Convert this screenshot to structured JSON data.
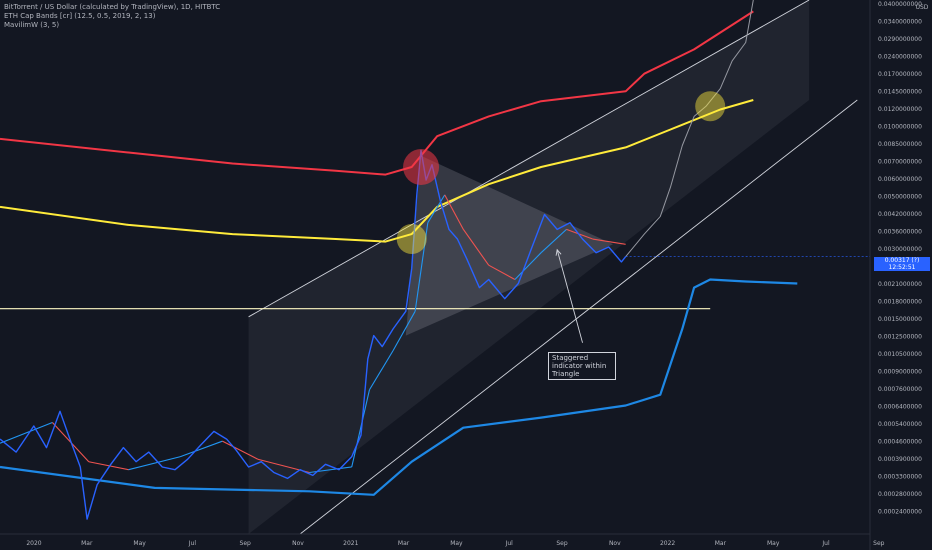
{
  "legend": {
    "symbol": "BitTorrent / US Dollar (calculated by TradingView), 1D, HITBTC",
    "indicator1": "ETH Cap Bands [cr] (12.5, 0.5, 2019, 2, 13)",
    "indicator2": "MavilimW (3, 5)"
  },
  "annotation": {
    "text": "Staggered indicator within Triangle"
  },
  "price_tag": {
    "price": "0.00317 (?)",
    "countdown": "12:52:51"
  },
  "currency": "USD",
  "colors": {
    "background": "#131722",
    "price_line": "#2962ff",
    "upper_band": "#f23645",
    "mid_band": "#ffeb3b",
    "lower_band": "#1e88e5",
    "mavilim_red": "#ef5350",
    "mavilim_blue": "#2196f3",
    "channel": "#d1d4dc",
    "support_line": "#fff9c4"
  },
  "chart_data": {
    "type": "line",
    "title": "BitTorrent / US Dollar (calculated by TradingView), 1D, HITBTC",
    "x_axis": {
      "range": [
        "2019-12-01",
        "2022-09-25"
      ],
      "tick_labels": [
        "2020",
        "Mar",
        "May",
        "Jul",
        "Sep",
        "Nov",
        "2021",
        "Mar",
        "May",
        "Jul",
        "Sep",
        "Nov",
        "2022",
        "Mar",
        "May",
        "Jul",
        "Sep"
      ]
    },
    "y_axis": {
      "scale": "log",
      "range": [
        0.00018,
        0.045
      ],
      "tick_labels": [
        "0.0400000000",
        "0.0340000000",
        "0.0290000000",
        "0.0240000000",
        "0.0170000000",
        "0.0145000000",
        "0.0120000000",
        "0.0100000000",
        "0.0085000000",
        "0.0070000000",
        "0.0060000000",
        "0.0050000000",
        "0.0042000000",
        "0.0036000000",
        "0.0030000000",
        "0.0025000000",
        "0.0021000000",
        "0.0018000000",
        "0.0015000000",
        "0.0012500000",
        "0.0010500000",
        "0.0009000000",
        "0.0007600000",
        "0.0006400000",
        "0.0005400000",
        "0.0004600000",
        "0.0003900000",
        "0.0003300000",
        "0.0002800000",
        "0.0002400000"
      ]
    },
    "series": [
      {
        "role": "price",
        "style": "blue line",
        "points": [
          [
            "2019-12-01",
            0.00048
          ],
          [
            "2019-12-20",
            0.00042
          ],
          [
            "2020-01-10",
            0.00055
          ],
          [
            "2020-01-25",
            0.00044
          ],
          [
            "2020-02-10",
            0.00064
          ],
          [
            "2020-02-20",
            0.0005
          ],
          [
            "2020-03-05",
            0.00036
          ],
          [
            "2020-03-13",
            0.00021
          ],
          [
            "2020-03-25",
            0.0003
          ],
          [
            "2020-04-10",
            0.00037
          ],
          [
            "2020-04-25",
            0.00044
          ],
          [
            "2020-05-10",
            0.00038
          ],
          [
            "2020-05-25",
            0.00042
          ],
          [
            "2020-06-10",
            0.00036
          ],
          [
            "2020-06-25",
            0.00035
          ],
          [
            "2020-07-10",
            0.00039
          ],
          [
            "2020-07-25",
            0.00045
          ],
          [
            "2020-08-10",
            0.00052
          ],
          [
            "2020-08-25",
            0.00048
          ],
          [
            "2020-09-05",
            0.00043
          ],
          [
            "2020-09-20",
            0.00036
          ],
          [
            "2020-10-05",
            0.00038
          ],
          [
            "2020-10-20",
            0.00034
          ],
          [
            "2020-11-05",
            0.00032
          ],
          [
            "2020-11-20",
            0.00035
          ],
          [
            "2020-12-05",
            0.00033
          ],
          [
            "2020-12-20",
            0.00037
          ],
          [
            "2021-01-05",
            0.00035
          ],
          [
            "2021-01-20",
            0.0004
          ],
          [
            "2021-01-31",
            0.0005
          ],
          [
            "2021-02-08",
            0.0011
          ],
          [
            "2021-02-15",
            0.0014
          ],
          [
            "2021-02-25",
            0.00125
          ],
          [
            "2021-03-10",
            0.0015
          ],
          [
            "2021-03-25",
            0.0018
          ],
          [
            "2021-04-01",
            0.0028
          ],
          [
            "2021-04-07",
            0.006
          ],
          [
            "2021-04-12",
            0.0095
          ],
          [
            "2021-04-18",
            0.007
          ],
          [
            "2021-04-25",
            0.0082
          ],
          [
            "2021-05-05",
            0.0056
          ],
          [
            "2021-05-15",
            0.0042
          ],
          [
            "2021-05-25",
            0.0038
          ],
          [
            "2021-06-05",
            0.0031
          ],
          [
            "2021-06-20",
            0.0023
          ],
          [
            "2021-07-01",
            0.0025
          ],
          [
            "2021-07-20",
            0.00205
          ],
          [
            "2021-08-05",
            0.0024
          ],
          [
            "2021-08-20",
            0.0034
          ],
          [
            "2021-09-05",
            0.0049
          ],
          [
            "2021-09-20",
            0.0042
          ],
          [
            "2021-10-05",
            0.0045
          ],
          [
            "2021-10-20",
            0.0038
          ],
          [
            "2021-11-05",
            0.0033
          ],
          [
            "2021-11-20",
            0.0035
          ],
          [
            "2021-12-05",
            0.003
          ],
          [
            "2021-12-10",
            0.00317
          ]
        ]
      },
      {
        "role": "projection",
        "style": "gray line",
        "points": [
          [
            "2021-12-10",
            0.00317
          ],
          [
            "2022-01-01",
            0.004
          ],
          [
            "2022-01-20",
            0.0048
          ],
          [
            "2022-02-01",
            0.0065
          ],
          [
            "2022-02-15",
            0.01
          ],
          [
            "2022-03-01",
            0.0135
          ],
          [
            "2022-03-15",
            0.015
          ],
          [
            "2022-04-01",
            0.018
          ],
          [
            "2022-04-15",
            0.024
          ],
          [
            "2022-05-01",
            0.029
          ],
          [
            "2022-05-10",
            0.045
          ]
        ]
      },
      {
        "role": "upper_band",
        "style": "red line",
        "points": [
          [
            "2019-12-01",
            0.0107
          ],
          [
            "2020-05-01",
            0.0093
          ],
          [
            "2020-09-01",
            0.0083
          ],
          [
            "2021-01-01",
            0.0077
          ],
          [
            "2021-03-01",
            0.0074
          ],
          [
            "2021-04-01",
            0.008
          ],
          [
            "2021-05-01",
            0.011
          ],
          [
            "2021-07-01",
            0.0135
          ],
          [
            "2021-09-01",
            0.0158
          ],
          [
            "2021-12-10",
            0.0175
          ],
          [
            "2022-01-01",
            0.021
          ],
          [
            "2022-03-01",
            0.027
          ],
          [
            "2022-05-10",
            0.04
          ]
        ]
      },
      {
        "role": "mid_band",
        "style": "yellow line",
        "points": [
          [
            "2019-12-01",
            0.0053
          ],
          [
            "2020-05-01",
            0.0044
          ],
          [
            "2020-09-01",
            0.004
          ],
          [
            "2021-01-01",
            0.0038
          ],
          [
            "2021-03-01",
            0.0037
          ],
          [
            "2021-04-01",
            0.004
          ],
          [
            "2021-05-01",
            0.0053
          ],
          [
            "2021-07-01",
            0.0067
          ],
          [
            "2021-09-01",
            0.008
          ],
          [
            "2021-12-10",
            0.0098
          ],
          [
            "2022-02-01",
            0.0118
          ],
          [
            "2022-04-01",
            0.0145
          ],
          [
            "2022-05-10",
            0.016
          ]
        ]
      },
      {
        "role": "lower_band",
        "style": "blue thick line",
        "points": [
          [
            "2019-12-01",
            0.00036
          ],
          [
            "2020-06-01",
            0.00029
          ],
          [
            "2020-12-01",
            0.00028
          ],
          [
            "2021-02-15",
            0.00027
          ],
          [
            "2021-04-01",
            0.00038
          ],
          [
            "2021-06-01",
            0.00054
          ],
          [
            "2021-09-01",
            0.0006
          ],
          [
            "2021-12-10",
            0.00068
          ],
          [
            "2022-01-20",
            0.00076
          ],
          [
            "2022-02-15",
            0.0015
          ],
          [
            "2022-03-01",
            0.0023
          ],
          [
            "2022-03-20",
            0.0025
          ],
          [
            "2022-05-01",
            0.00245
          ],
          [
            "2022-07-01",
            0.0024
          ]
        ]
      },
      {
        "role": "mavilim",
        "style": "red/blue line",
        "points": [
          [
            "2019-12-01",
            0.00046
          ],
          [
            "2020-02-01",
            0.00057
          ],
          [
            "2020-03-15",
            0.00038
          ],
          [
            "2020-05-01",
            0.00035
          ],
          [
            "2020-07-01",
            0.0004
          ],
          [
            "2020-08-20",
            0.00047
          ],
          [
            "2020-10-01",
            0.00039
          ],
          [
            "2020-12-01",
            0.00034
          ],
          [
            "2021-01-20",
            0.00036
          ],
          [
            "2021-02-10",
            0.0008
          ],
          [
            "2021-03-10",
            0.0012
          ],
          [
            "2021-04-05",
            0.0018
          ],
          [
            "2021-04-20",
            0.0045
          ],
          [
            "2021-05-10",
            0.006
          ],
          [
            "2021-06-01",
            0.0042
          ],
          [
            "2021-07-01",
            0.0029
          ],
          [
            "2021-08-01",
            0.0025
          ],
          [
            "2021-09-01",
            0.0033
          ],
          [
            "2021-10-01",
            0.0042
          ],
          [
            "2021-11-01",
            0.0038
          ],
          [
            "2021-12-10",
            0.0036
          ]
        ]
      }
    ],
    "lines": [
      {
        "role": "channel_upper",
        "points": [
          [
            "2020-09-20",
            0.0017
          ],
          [
            "2022-07-15",
            0.045
          ]
        ]
      },
      {
        "role": "channel_lower",
        "points": [
          [
            "2020-11-20",
            0.00018
          ],
          [
            "2022-09-10",
            0.016
          ]
        ]
      },
      {
        "role": "support",
        "points": [
          [
            "2019-12-01",
            0.00185
          ],
          [
            "2022-03-20",
            0.00185
          ]
        ]
      }
    ],
    "shapes": [
      {
        "role": "triangle",
        "points": [
          [
            "2021-03-25",
            0.0014
          ],
          [
            "2021-04-12",
            0.009
          ],
          [
            "2021-11-25",
            0.0036
          ]
        ]
      },
      {
        "role": "shaded_channel",
        "points": [
          [
            "2020-09-20",
            0.0017
          ],
          [
            "2022-07-15",
            0.045
          ],
          [
            "2022-07-15",
            0.016
          ],
          [
            "2020-09-20",
            0.00018
          ]
        ]
      }
    ],
    "markers": [
      {
        "date": "2021-04-12",
        "value": 0.008,
        "color": "red"
      },
      {
        "date": "2021-04-01",
        "value": 0.0038,
        "color": "yellow"
      },
      {
        "date": "2022-03-20",
        "value": 0.015,
        "color": "yellow"
      }
    ],
    "arrow": {
      "from": [
        "2021-10-20",
        0.0013
      ],
      "to": [
        "2021-09-20",
        0.0034
      ]
    }
  }
}
